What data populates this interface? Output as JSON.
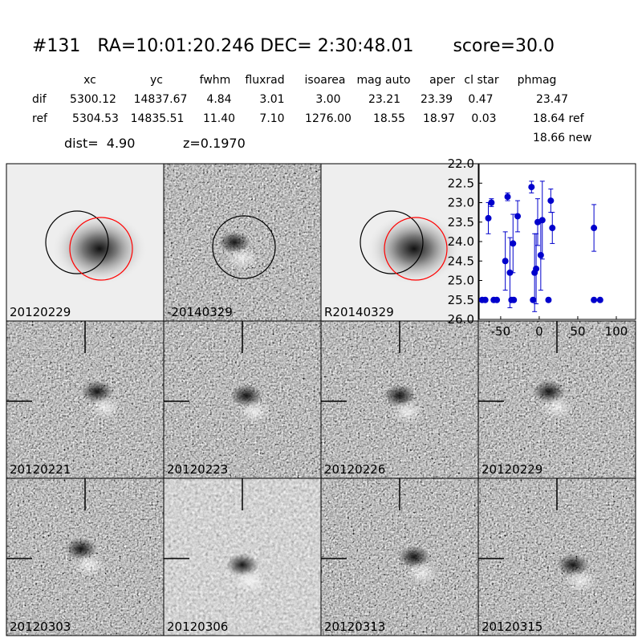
{
  "header": {
    "title": "#131   RA=10:01:20.246 DEC= 2:30:48.01       score=30.0",
    "dist": "dist=  4.90",
    "z": "z=0.1970",
    "extra": "18.66 new"
  },
  "table": {
    "columns": [
      "xc",
      "yc",
      "fwhm",
      "fluxrad",
      "isoarea",
      "mag auto",
      "aper",
      "cl star",
      "phmag"
    ],
    "rows": [
      {
        "label": "dif",
        "cells": [
          "5300.12",
          "14837.67",
          "4.84",
          "3.01",
          "3.00",
          "23.21",
          "23.39",
          "0.47",
          "23.47"
        ]
      },
      {
        "label": "ref",
        "cells": [
          "5304.53",
          "14835.51",
          "11.40",
          "7.10",
          "1276.00",
          "18.55",
          "18.97",
          "0.03",
          "18.64 ref"
        ]
      }
    ]
  },
  "stamps": [
    {
      "label": "20120229"
    },
    {
      "label": "-20140329"
    },
    {
      "label": "R20140329"
    },
    {
      "label": "20120221"
    },
    {
      "label": "20120223"
    },
    {
      "label": "20120226"
    },
    {
      "label": "20120229",
      "color": "#ff0000"
    },
    {
      "label": "20120303"
    },
    {
      "label": "20120306"
    },
    {
      "label": "20120313"
    },
    {
      "label": "20120315"
    }
  ],
  "chart_data": {
    "type": "errorbar",
    "xlim": [
      -78,
      125
    ],
    "ylim": [
      22,
      26
    ],
    "y_inverted": true,
    "xticks": [
      -50,
      0,
      50,
      100
    ],
    "yticks": [
      {
        "value": 22,
        "label": "22.0"
      },
      {
        "value": 22.5,
        "label": "22.5"
      },
      {
        "value": 23,
        "label": "23.0"
      },
      {
        "value": 23.5,
        "label": "23.5"
      },
      {
        "value": 24,
        "label": "24.0"
      },
      {
        "value": 24.5,
        "label": "24.5"
      },
      {
        "value": 25,
        "label": "25.0"
      },
      {
        "value": 25.5,
        "label": "25.5"
      },
      {
        "value": 26,
        "label": "26.0"
      }
    ],
    "series": [
      {
        "color": "#0000cc",
        "x": [
          -74,
          -70,
          -59,
          -55,
          -66,
          -62,
          -44,
          -41,
          -38,
          -36,
          -34,
          -33,
          -28,
          -10,
          -8,
          -6,
          -4,
          -2,
          2,
          4,
          12,
          15,
          17,
          71,
          71,
          79
        ],
        "values": [
          25.5,
          25.5,
          25.5,
          25.5,
          23.4,
          23.0,
          24.5,
          22.85,
          24.8,
          25.5,
          24.05,
          25.5,
          23.35,
          22.6,
          25.5,
          24.8,
          24.7,
          23.5,
          24.35,
          23.45,
          25.5,
          22.95,
          23.65,
          23.65,
          25.5,
          25.5
        ],
        "errors": [
          0,
          0,
          0,
          0,
          0.4,
          0.1,
          0.75,
          0.1,
          0.9,
          0,
          0.75,
          0,
          0.4,
          0.15,
          0,
          1.0,
          0.9,
          0.6,
          0.9,
          1.0,
          0,
          0.3,
          0.4,
          0.6,
          0,
          0
        ]
      }
    ]
  }
}
